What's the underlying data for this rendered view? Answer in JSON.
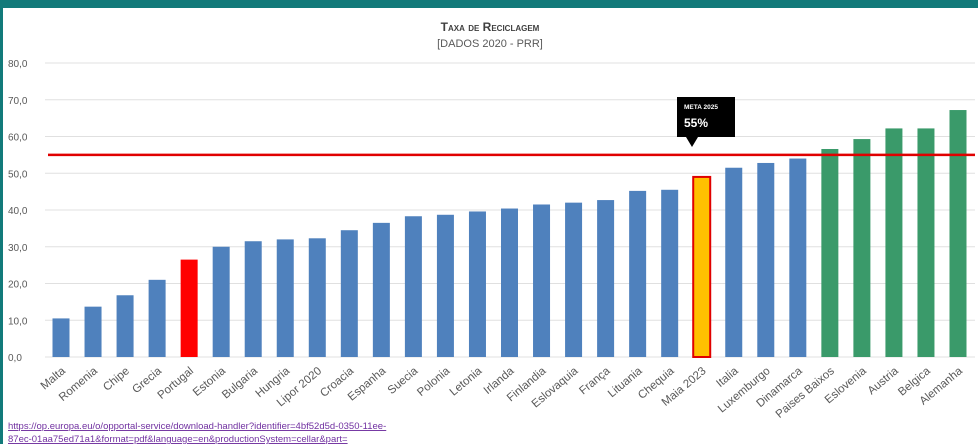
{
  "chart_data": {
    "type": "bar",
    "title": "Taxa de Reciclagem",
    "subtitle": "[DADOS 2020 - PRR]",
    "categories": [
      "Malta",
      "Romenia",
      "Chipe",
      "Grecia",
      "Portugal",
      "Estonia",
      "Bulgaria",
      "Hungria",
      "Lipor 2020",
      "Croacia",
      "Espanha",
      "Suecia",
      "Polonia",
      "Letonia",
      "Irlanda",
      "Finlandia",
      "Eslovaquia",
      "França",
      "Lituania",
      "Chequia",
      "Maia 2023",
      "Italia",
      "Luxemburgo",
      "Dinamarca",
      "Paises Baixos",
      "Eslovenia",
      "Austria",
      "Belgica",
      "Alemanha"
    ],
    "values": [
      10.5,
      13.7,
      16.8,
      21.0,
      26.5,
      30.0,
      31.5,
      32.0,
      32.3,
      34.5,
      36.5,
      38.3,
      38.7,
      39.6,
      40.4,
      41.5,
      42.0,
      42.7,
      45.2,
      45.5,
      49.0,
      51.5,
      52.8,
      54.0,
      56.6,
      59.3,
      62.2,
      62.2,
      67.2
    ],
    "colors": [
      "#4f81bd",
      "#4f81bd",
      "#4f81bd",
      "#4f81bd",
      "#ff0000",
      "#4f81bd",
      "#4f81bd",
      "#4f81bd",
      "#4f81bd",
      "#4f81bd",
      "#4f81bd",
      "#4f81bd",
      "#4f81bd",
      "#4f81bd",
      "#4f81bd",
      "#4f81bd",
      "#4f81bd",
      "#4f81bd",
      "#4f81bd",
      "#4f81bd",
      "#ffc000",
      "#4f81bd",
      "#4f81bd",
      "#4f81bd",
      "#3a9a6a",
      "#3a9a6a",
      "#3a9a6a",
      "#3a9a6a",
      "#3a9a6a"
    ],
    "edgecolors": [
      null,
      null,
      null,
      null,
      null,
      null,
      null,
      null,
      null,
      null,
      null,
      null,
      null,
      null,
      null,
      null,
      null,
      null,
      null,
      null,
      "#e00000",
      null,
      null,
      null,
      null,
      null,
      null,
      null,
      null
    ],
    "ylim": [
      0,
      80
    ],
    "yticks": [
      {
        "value": 0,
        "label": "0,0"
      },
      {
        "value": 10,
        "label": "10,0"
      },
      {
        "value": 20,
        "label": "20,0"
      },
      {
        "value": 30,
        "label": "30,0"
      },
      {
        "value": 40,
        "label": "40,0"
      },
      {
        "value": 50,
        "label": "50,0"
      },
      {
        "value": 60,
        "label": "60,0"
      },
      {
        "value": 70,
        "label": "70,0"
      },
      {
        "value": 80,
        "label": "80,0"
      }
    ],
    "grid": true,
    "target_line": {
      "value": 55,
      "color": "#e00000",
      "title": "META 2025",
      "label": "55%"
    },
    "source": [
      "https://op.europa.eu/o/opportal-service/download-handler?identifier=4bf52d5d-0350-11ee-",
      "87ec-01aa75ed71a1&format=pdf&language=en&productionSystem=cellar&part="
    ]
  }
}
